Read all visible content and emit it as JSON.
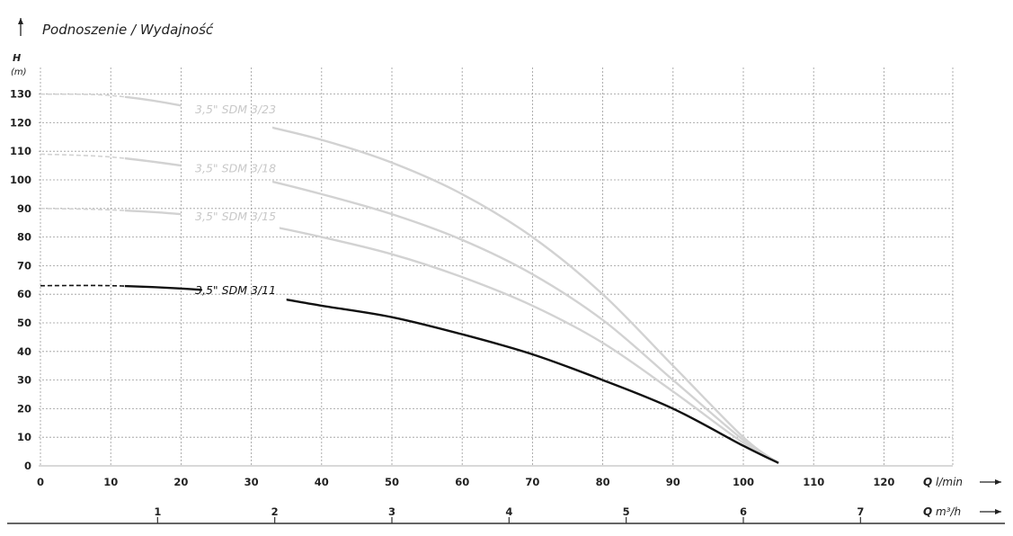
{
  "chart_data": {
    "type": "line",
    "title": "Podnoszenie / Wydajność",
    "ylabel": "H",
    "yunit": "(m)",
    "xlabel": "Q",
    "xunit": "l/min",
    "x2label": "Q",
    "x2unit": "m³/h",
    "xlim": [
      0,
      130
    ],
    "ylim": [
      0,
      130
    ],
    "x_ticks": [
      "0",
      "10",
      "20",
      "30",
      "40",
      "50",
      "60",
      "70",
      "80",
      "90",
      "100",
      "110",
      "120"
    ],
    "y_ticks": [
      "0",
      "10",
      "20",
      "30",
      "40",
      "50",
      "60",
      "70",
      "80",
      "90",
      "100",
      "110",
      "120",
      "130"
    ],
    "x2_ticks": [
      "1",
      "2",
      "3",
      "4",
      "5",
      "6",
      "7"
    ],
    "grid": true,
    "series": [
      {
        "name": "3,5\" SDM 3/23",
        "color": "#d2d2d2",
        "x": [
          0,
          10,
          20,
          30,
          40,
          50,
          60,
          70,
          80,
          90,
          100,
          105
        ],
        "y": [
          130,
          129.5,
          126,
          120,
          114,
          106,
          95,
          80,
          60,
          35,
          10,
          1
        ]
      },
      {
        "name": "3,5\" SDM 3/18",
        "color": "#d2d2d2",
        "x": [
          0,
          10,
          20,
          30,
          40,
          50,
          60,
          70,
          80,
          90,
          100,
          105
        ],
        "y": [
          109,
          108,
          105,
          101,
          95,
          88,
          79,
          67,
          51,
          30,
          9,
          1
        ]
      },
      {
        "name": "3,5\" SDM 3/15",
        "color": "#d2d2d2",
        "x": [
          0,
          10,
          20,
          30,
          40,
          50,
          60,
          70,
          80,
          90,
          100,
          105
        ],
        "y": [
          90,
          89.5,
          88,
          85,
          80,
          74,
          66,
          56,
          43,
          26,
          8,
          1
        ]
      },
      {
        "name": "3,5\" SDM 3/11",
        "color": "#111111",
        "x": [
          0,
          10,
          20,
          30,
          40,
          50,
          60,
          70,
          80,
          90,
          100,
          105
        ],
        "y": [
          63,
          63,
          62,
          60,
          56,
          52,
          46,
          39,
          30,
          20,
          7,
          1
        ]
      }
    ]
  }
}
